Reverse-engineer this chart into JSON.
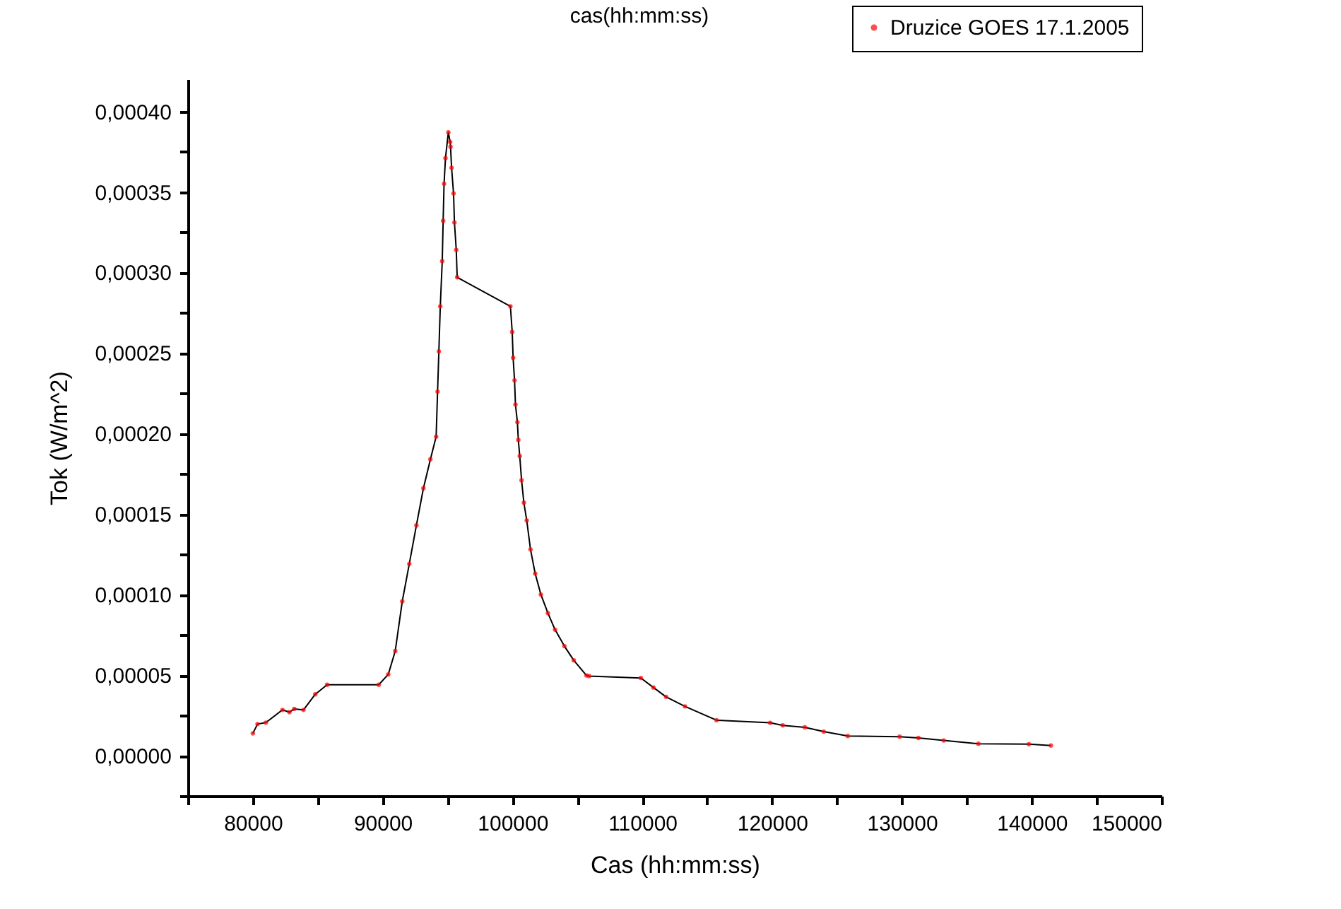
{
  "chart_data": {
    "type": "line",
    "title": "cas(hh:mm:ss)",
    "xlabel": "Cas (hh:mm:ss)",
    "ylabel": "Tok (W/m^2)",
    "xlim": [
      75000,
      150000
    ],
    "xticks": [
      {
        "value": 75000,
        "label": null
      },
      80000,
      {
        "value": 85000,
        "label": null
      },
      90000,
      {
        "value": 95000,
        "label": null
      },
      100000,
      {
        "value": 105000,
        "label": null
      },
      110000,
      {
        "value": 115000,
        "label": null
      },
      120000,
      {
        "value": 125000,
        "label": null
      },
      130000,
      {
        "value": 135000,
        "label": null
      },
      140000,
      {
        "value": 145000,
        "label": null
      },
      150000
    ],
    "ylim": [
      -2.5e-05,
      0.00042
    ],
    "yticks": [
      {
        "value": -2.5e-05,
        "label": null
      },
      {
        "value": 0,
        "label": "0,00000"
      },
      {
        "value": 2.5e-05,
        "label": null
      },
      {
        "value": 5e-05,
        "label": "0,00005"
      },
      {
        "value": 7.5e-05,
        "label": null
      },
      {
        "value": 0.0001,
        "label": "0,00010"
      },
      {
        "value": 0.000125,
        "label": null
      },
      {
        "value": 0.00015,
        "label": "0,00015"
      },
      {
        "value": 0.000175,
        "label": null
      },
      {
        "value": 0.0002,
        "label": "0,00020"
      },
      {
        "value": 0.000225,
        "label": null
      },
      {
        "value": 0.00025,
        "label": "0,00025"
      },
      {
        "value": 0.000275,
        "label": null
      },
      {
        "value": 0.0003,
        "label": "0,00030"
      },
      {
        "value": 0.000325,
        "label": null
      },
      {
        "value": 0.00035,
        "label": "0,00035"
      },
      {
        "value": 0.000375,
        "label": null
      },
      {
        "value": 0.0004,
        "label": "0,00040"
      }
    ],
    "grid": false,
    "legend": "top right",
    "marker": "circle",
    "line_style": "solid",
    "series": [
      {
        "name": "Druzice GOES 17.1.2005",
        "color": "#ff0000",
        "x": [
          80000,
          80360,
          81000,
          82280,
          82820,
          83190,
          83900,
          84810,
          85720,
          89700,
          90430,
          90970,
          91510,
          92050,
          92600,
          93140,
          93680,
          94120,
          94230,
          94330,
          94440,
          94590,
          94660,
          94730,
          94840,
          95060,
          95200,
          95230,
          95310,
          95460,
          95530,
          95670,
          95740,
          99840,
          99980,
          100050,
          100160,
          100230,
          100380,
          100450,
          100560,
          100700,
          100880,
          101100,
          101390,
          101750,
          102190,
          102730,
          103280,
          104000,
          104720,
          105700,
          105900,
          109890,
          110860,
          111830,
          113290,
          115720,
          119850,
          120820,
          122520,
          123980,
          125830,
          129820,
          131270,
          133220,
          135890,
          139780,
          141480
        ],
        "values": [
          1.38e-05,
          1.96e-05,
          2.05e-05,
          2.84e-05,
          2.7e-05,
          2.9e-05,
          2.84e-05,
          3.81e-05,
          4.4e-05,
          4.4e-05,
          5.04e-05,
          6.5e-05,
          9.58e-05,
          0.000119,
          0.000143,
          0.000166,
          0.000184,
          0.000198,
          0.000226,
          0.000251,
          0.000279,
          0.000307,
          0.000332,
          0.000355,
          0.000371,
          0.000387,
          0.000381,
          0.000378,
          0.000365,
          0.000349,
          0.000331,
          0.000314,
          0.000297,
          0.000279,
          0.000263,
          0.000247,
          0.000233,
          0.000218,
          0.000207,
          0.000196,
          0.000186,
          0.000171,
          0.000157,
          0.000146,
          0.000128,
          0.000113,
          0.0001,
          8.85e-05,
          7.82e-05,
          6.8e-05,
          5.92e-05,
          4.98e-05,
          4.94e-05,
          4.82e-05,
          4.23e-05,
          3.65e-05,
          3.06e-05,
          2.2e-05,
          2.04e-05,
          1.88e-05,
          1.76e-05,
          1.49e-05,
          1.22e-05,
          1.18e-05,
          1.1e-05,
          9.4e-06,
          7.4e-06,
          7.1e-06,
          6.3e-06
        ]
      }
    ]
  }
}
